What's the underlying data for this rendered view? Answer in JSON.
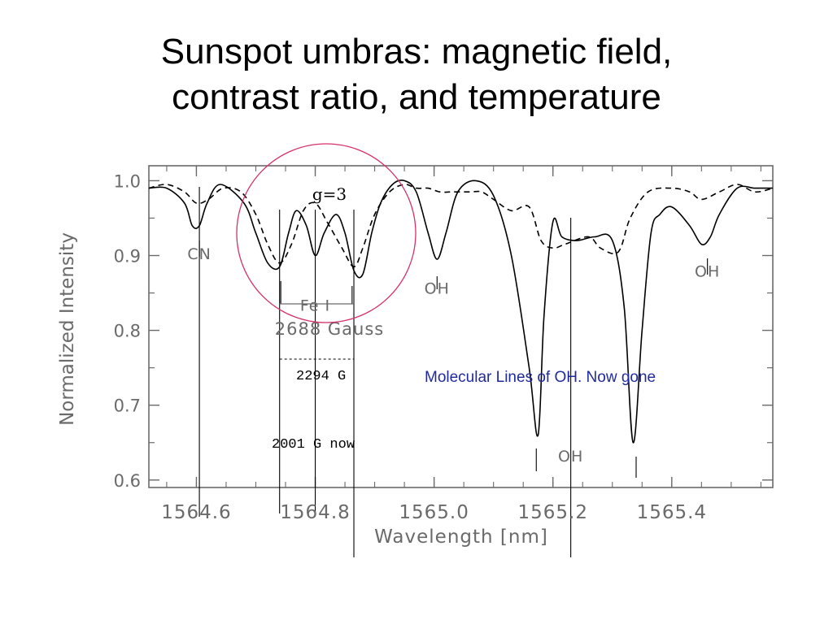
{
  "slide": {
    "title_line1": "Sunspot umbras: magnetic field,",
    "title_line2": "contrast ratio, and temperature"
  },
  "annotations": {
    "g_factor": "g=3",
    "split_original": "2688 Gauss",
    "split_measured": "2294 G",
    "split_now": "2001 G now",
    "molecular_note": "Molecular Lines of OH. Now gone"
  },
  "colors": {
    "circle": "#d6306a",
    "note_blue": "#1f2a9c",
    "axis_gray": "#6a6a6a",
    "curve": "#000000"
  },
  "chart_data": {
    "type": "line",
    "title": "",
    "xlabel": "Wavelength [nm]",
    "ylabel": "Normalized Intensity",
    "xlim": [
      1564.52,
      1565.57
    ],
    "ylim": [
      0.59,
      1.02
    ],
    "x_ticks": [
      1564.6,
      1564.8,
      1565.0,
      1565.2,
      1565.4
    ],
    "x_tick_labels": [
      "1564.6",
      "1564.8",
      "1565.0",
      "1565.2",
      "1565.4"
    ],
    "y_ticks": [
      0.6,
      0.7,
      0.8,
      0.9,
      1.0
    ],
    "y_tick_labels": [
      "0.6",
      "0.7",
      "0.8",
      "0.9",
      "1.0"
    ],
    "grid": false,
    "line_labels": [
      {
        "text": "CN",
        "x": 1564.605,
        "y": 0.895
      },
      {
        "text": "Fe I",
        "x": 1564.8,
        "y": 0.826
      },
      {
        "text": "OH",
        "x": 1565.005,
        "y": 0.849
      },
      {
        "text": "OH",
        "x": 1565.23,
        "y": 0.625
      },
      {
        "text": "OH",
        "x": 1565.46,
        "y": 0.872
      }
    ],
    "series": [
      {
        "style": "solid",
        "x": [
          1564.52,
          1564.55,
          1564.58,
          1564.593,
          1564.605,
          1564.618,
          1564.64,
          1564.68,
          1564.7,
          1564.72,
          1564.74,
          1564.755,
          1564.768,
          1564.785,
          1564.8,
          1564.815,
          1564.835,
          1564.85,
          1564.865,
          1564.88,
          1564.895,
          1564.91,
          1564.93,
          1564.95,
          1564.97,
          1564.99,
          1565.005,
          1565.02,
          1565.04,
          1565.07,
          1565.1,
          1565.13,
          1565.16,
          1565.175,
          1565.185,
          1565.2,
          1565.215,
          1565.24,
          1565.27,
          1565.3,
          1565.32,
          1565.335,
          1565.35,
          1565.365,
          1565.38,
          1565.4,
          1565.43,
          1565.45,
          1565.465,
          1565.48,
          1565.51,
          1565.54,
          1565.57
        ],
        "y": [
          0.99,
          0.99,
          0.97,
          0.94,
          0.94,
          0.97,
          0.995,
          0.97,
          0.93,
          0.89,
          0.885,
          0.93,
          0.96,
          0.94,
          0.9,
          0.93,
          0.955,
          0.93,
          0.88,
          0.875,
          0.93,
          0.97,
          0.995,
          1.0,
          0.985,
          0.93,
          0.895,
          0.93,
          0.985,
          1.0,
          0.98,
          0.9,
          0.75,
          0.66,
          0.82,
          0.945,
          0.925,
          0.92,
          0.925,
          0.92,
          0.83,
          0.65,
          0.8,
          0.93,
          0.955,
          0.965,
          0.94,
          0.915,
          0.925,
          0.955,
          0.99,
          0.99,
          0.99
        ]
      },
      {
        "style": "dashed",
        "x": [
          1564.52,
          1564.55,
          1564.58,
          1564.6,
          1564.62,
          1564.645,
          1564.675,
          1564.7,
          1564.72,
          1564.74,
          1564.76,
          1564.78,
          1564.8,
          1564.82,
          1564.845,
          1564.865,
          1564.88,
          1564.9,
          1564.925,
          1564.95,
          1564.97,
          1564.99,
          1565.01,
          1565.03,
          1565.06,
          1565.08,
          1565.1,
          1565.13,
          1565.16,
          1565.18,
          1565.2,
          1565.22,
          1565.26,
          1565.28,
          1565.31,
          1565.33,
          1565.36,
          1565.4,
          1565.43,
          1565.45,
          1565.48,
          1565.51,
          1565.54,
          1565.57
        ],
        "y": [
          0.99,
          0.995,
          0.985,
          0.97,
          0.975,
          0.99,
          0.985,
          0.955,
          0.915,
          0.89,
          0.915,
          0.96,
          0.97,
          0.945,
          0.91,
          0.885,
          0.91,
          0.955,
          0.985,
          0.995,
          0.99,
          0.99,
          0.985,
          0.985,
          0.985,
          0.985,
          0.975,
          0.96,
          0.965,
          0.92,
          0.91,
          0.915,
          0.925,
          0.91,
          0.905,
          0.95,
          0.985,
          0.99,
          0.985,
          0.975,
          0.985,
          0.995,
          0.985,
          0.99
        ]
      }
    ]
  }
}
